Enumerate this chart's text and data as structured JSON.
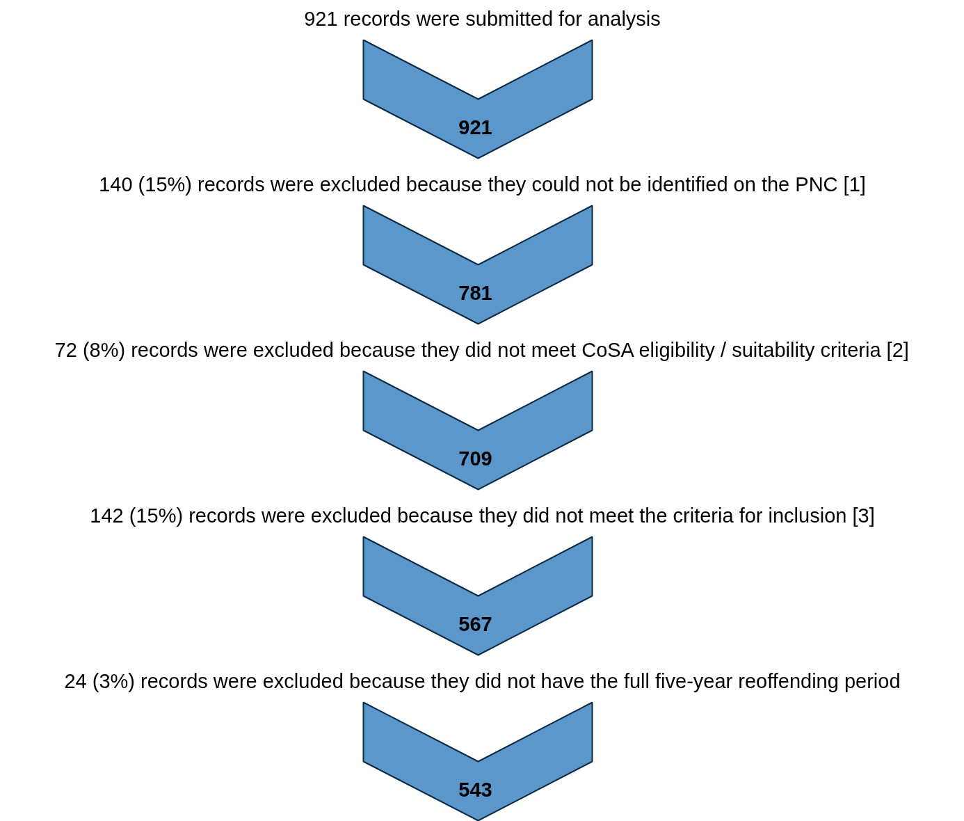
{
  "chart_data": {
    "type": "other",
    "categories": [
      null,
      null,
      null,
      null,
      null
    ],
    "annotations": [
      "921 records were submitted for analysis",
      "140 (15%) records were excluded because they could not be identified on the PNC [1]",
      "72 (8%) records were excluded because they did not meet CoSA eligibility / suitability criteria [2]",
      "142 (15%) records were excluded because they did not meet the criteria for inclusion [3]",
      "24 (3%) records were excluded because they did not have the full five-year reoffending period"
    ],
    "values": [
      921,
      781,
      709,
      567,
      543
    ],
    "color": "#5b97cb",
    "data_labels": true
  }
}
